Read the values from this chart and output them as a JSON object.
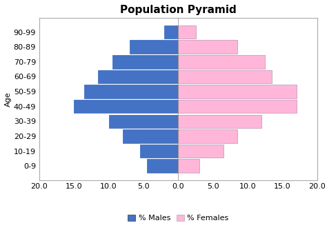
{
  "title": "Population Pyramid",
  "age_groups": [
    "0-9",
    "10-19",
    "20-29",
    "30-39",
    "40-49",
    "50-59",
    "60-69",
    "70-79",
    "80-89",
    "90-99"
  ],
  "males": [
    4.5,
    5.5,
    8.0,
    10.0,
    15.0,
    13.5,
    11.5,
    9.5,
    7.0,
    2.0
  ],
  "females": [
    3.0,
    6.5,
    8.5,
    12.0,
    17.0,
    17.0,
    13.5,
    12.5,
    8.5,
    2.5
  ],
  "male_color": "#4472C4",
  "female_color": "#FFB6D9",
  "male_edge_color": "#4472C4",
  "female_edge_color": "#C0A0C0",
  "bar_height": 0.9,
  "xlim": [
    -20,
    20
  ],
  "xticks": [
    -20,
    -15,
    -10,
    -5,
    0,
    5,
    10,
    15,
    20
  ],
  "xticklabels": [
    "20.0",
    "15.0",
    "10.0",
    "5.0",
    "0.0",
    "5.0",
    "10.0",
    "15.0",
    "20.0"
  ],
  "ylabel": "Age",
  "background_color": "#ffffff",
  "title_fontsize": 11,
  "axis_fontsize": 8,
  "tick_fontsize": 8,
  "legend_fontsize": 8
}
